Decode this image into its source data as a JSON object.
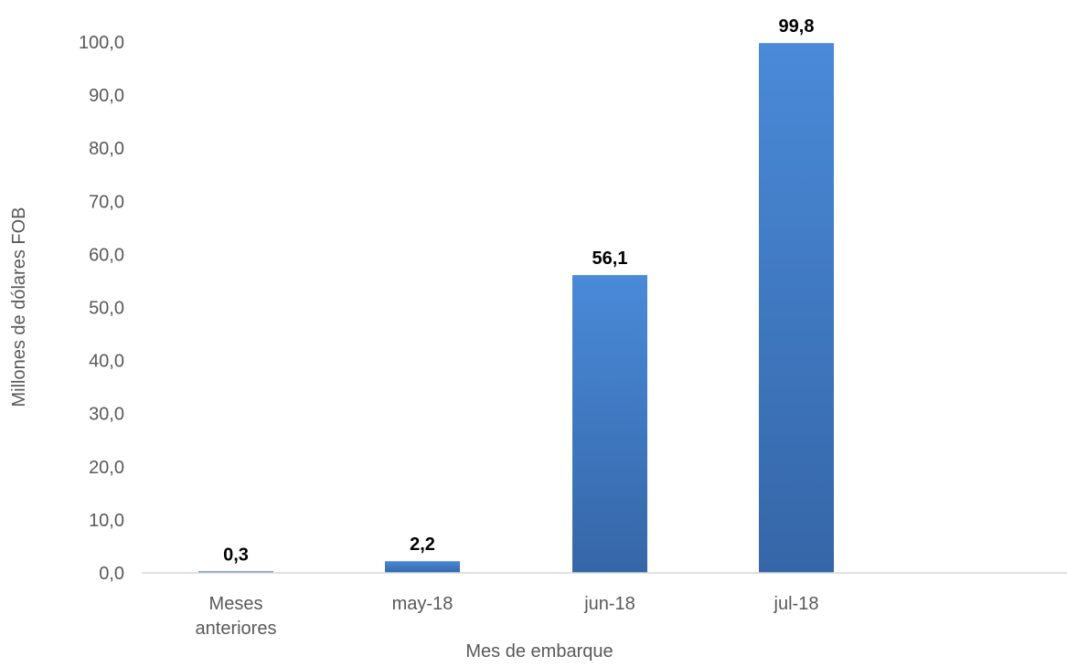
{
  "chart_data": {
    "type": "bar",
    "categories": [
      [
        "Meses",
        "anteriores"
      ],
      [
        "may-18"
      ],
      [
        "jun-18"
      ],
      [
        "jul-18"
      ]
    ],
    "values": [
      0.3,
      2.2,
      56.1,
      99.8
    ],
    "data_labels": [
      "0,3",
      "2,2",
      "56,1",
      "99,8"
    ],
    "title": "",
    "xlabel": "Mes de embarque",
    "ylabel": "Millones de dólares FOB",
    "ylim": [
      0,
      100
    ],
    "yticks": [
      0,
      10,
      20,
      30,
      40,
      50,
      60,
      70,
      80,
      90,
      100
    ],
    "ytick_labels": [
      "0,0",
      "10,0",
      "20,0",
      "30,0",
      "40,0",
      "50,0",
      "60,0",
      "70,0",
      "80,0",
      "90,0",
      "100,0"
    ],
    "grid": false,
    "legend": "none",
    "colors": {
      "bar_top": "#4a8ad8",
      "bar_bottom": "#3566a8",
      "axis_line": "#d9d9d9",
      "text": "#595959",
      "data_label": "#000000"
    }
  }
}
